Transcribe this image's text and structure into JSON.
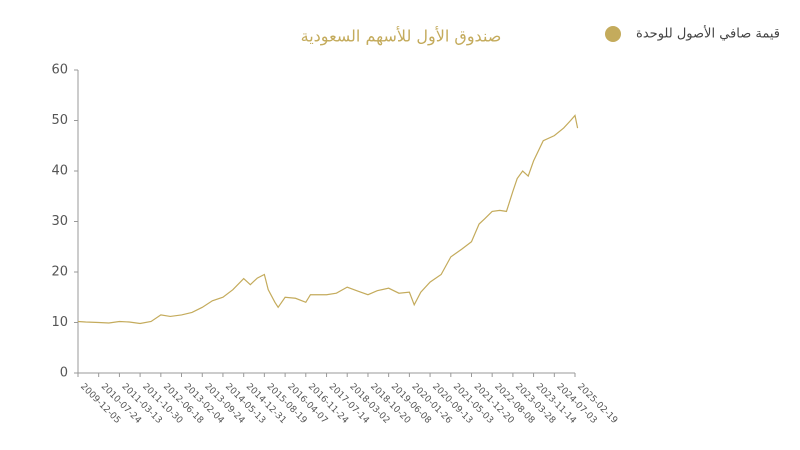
{
  "chart_data": {
    "type": "line",
    "title": "صندوق الأول للأسهم السعودية",
    "x": [
      "2009-12-05",
      "2010-03-01",
      "2010-07-24",
      "2010-11-15",
      "2011-03-13",
      "2011-07-01",
      "2011-10-30",
      "2012-03-01",
      "2012-06-18",
      "2012-10-01",
      "2013-02-04",
      "2013-06-01",
      "2013-09-24",
      "2014-01-15",
      "2014-05-13",
      "2014-09-01",
      "2014-12-31",
      "2015-03-15",
      "2015-06-01",
      "2015-08-19",
      "2015-10-01",
      "2015-12-15",
      "2016-01-20",
      "2016-04-07",
      "2016-08-01",
      "2016-11-24",
      "2017-01-15",
      "2017-07-14",
      "2017-11-01",
      "2018-03-02",
      "2018-07-01",
      "2018-10-20",
      "2019-02-01",
      "2019-06-08",
      "2019-10-01",
      "2020-01-26",
      "2020-03-20",
      "2020-06-01",
      "2020-09-13",
      "2021-01-15",
      "2021-05-03",
      "2021-09-01",
      "2021-12-20",
      "2022-03-15",
      "2022-05-15",
      "2022-08-08",
      "2022-11-01",
      "2023-01-15",
      "2023-03-28",
      "2023-05-15",
      "2023-07-15",
      "2023-09-15",
      "2023-11-14",
      "2024-03-01",
      "2024-07-03",
      "2024-10-15",
      "2025-01-01",
      "2025-02-19",
      "2025-03-20"
    ],
    "series": [
      {
        "name": "قيمة صافي الأصول للوحدة",
        "color": "#c4ab5c",
        "values": [
          10.2,
          10.1,
          10.0,
          9.9,
          10.2,
          10.1,
          9.8,
          10.2,
          11.5,
          11.2,
          11.5,
          12.0,
          13.0,
          14.3,
          15.0,
          16.5,
          18.7,
          17.5,
          18.8,
          19.5,
          16.5,
          14.0,
          13.0,
          15.0,
          14.8,
          14.0,
          15.5,
          15.5,
          15.8,
          17.0,
          16.2,
          15.5,
          16.3,
          16.8,
          15.8,
          16.0,
          13.5,
          16.0,
          18.0,
          19.5,
          23.0,
          24.5,
          26.0,
          29.5,
          30.5,
          32.0,
          32.2,
          32.0,
          36.0,
          38.5,
          40.0,
          39.0,
          42.0,
          46.0,
          47.0,
          48.5,
          50.0,
          51.0,
          48.5
        ]
      }
    ],
    "xlim": [
      "2009-12-05",
      "2025-02-19"
    ],
    "xticks": [
      "2009-12-05",
      "2010-07-24",
      "2011-03-13",
      "2011-10-30",
      "2012-06-18",
      "2013-02-04",
      "2013-09-24",
      "2014-05-13",
      "2014-12-31",
      "2015-08-19",
      "2016-04-07",
      "2016-11-24",
      "2017-07-14",
      "2018-03-02",
      "2018-10-20",
      "2019-06-08",
      "2020-01-26",
      "2020-09-13",
      "2021-05-03",
      "2021-12-20",
      "2022-08-08",
      "2023-03-28",
      "2023-11-14",
      "2024-07-03",
      "2025-02-19"
    ],
    "ylim": [
      0,
      60
    ],
    "yticks": [
      0,
      10,
      20,
      30,
      40,
      50,
      60
    ],
    "grid": false,
    "legend": "top-right"
  }
}
